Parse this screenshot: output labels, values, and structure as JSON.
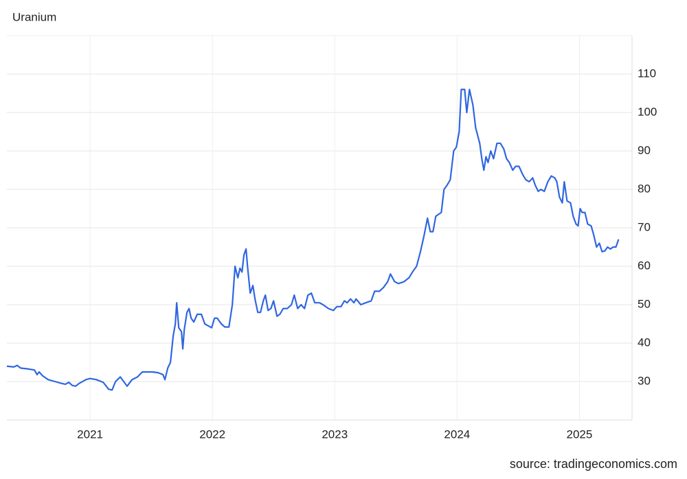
{
  "chart_data": {
    "type": "line",
    "title": "Uranium",
    "source": "source: tradingeconomics.com",
    "color": "#2f66e0",
    "grid": true,
    "xlim": [
      2020.32,
      2025.43
    ],
    "xticks": [
      2021,
      2022,
      2023,
      2024,
      2025
    ],
    "ylim": [
      20,
      120
    ],
    "yticks": [
      30,
      40,
      50,
      60,
      70,
      80,
      90,
      100,
      110
    ],
    "x": [
      2020.32,
      2020.376,
      2020.404,
      2020.433,
      2020.489,
      2020.545,
      2020.567,
      2020.584,
      2020.612,
      2020.657,
      2020.713,
      2020.77,
      2020.798,
      2020.826,
      2020.854,
      2020.882,
      2020.91,
      2020.966,
      2021.0,
      2021.051,
      2021.107,
      2021.152,
      2021.18,
      2021.208,
      2021.247,
      2021.275,
      2021.303,
      2021.343,
      2021.388,
      2021.427,
      2021.472,
      2021.511,
      2021.556,
      2021.596,
      2021.612,
      2021.635,
      2021.657,
      2021.68,
      2021.697,
      2021.708,
      2021.725,
      2021.747,
      2021.758,
      2021.77,
      2021.792,
      2021.809,
      2021.826,
      2021.848,
      2021.876,
      2021.91,
      2021.938,
      2021.966,
      2021.994,
      2022.017,
      2022.039,
      2022.073,
      2022.101,
      2022.135,
      2022.163,
      2022.185,
      2022.208,
      2022.225,
      2022.242,
      2022.258,
      2022.275,
      2022.287,
      2022.309,
      2022.331,
      2022.348,
      2022.371,
      2022.393,
      2022.416,
      2022.433,
      2022.455,
      2022.478,
      2022.5,
      2022.528,
      2022.551,
      2022.579,
      2022.612,
      2022.646,
      2022.669,
      2022.697,
      2022.725,
      2022.753,
      2022.781,
      2022.809,
      2022.837,
      2022.876,
      2022.904,
      2022.949,
      2022.989,
      2023.017,
      2023.051,
      2023.079,
      2023.101,
      2023.129,
      2023.157,
      2023.174,
      2023.213,
      2023.253,
      2023.298,
      2023.326,
      2023.365,
      2023.399,
      2023.433,
      2023.455,
      2023.489,
      2023.522,
      2023.567,
      2023.607,
      2023.635,
      2023.669,
      2023.702,
      2023.73,
      2023.758,
      2023.781,
      2023.803,
      2023.826,
      2023.848,
      2023.871,
      2023.893,
      2023.916,
      2023.944,
      2023.972,
      2023.994,
      2024.017,
      2024.034,
      2024.062,
      2024.079,
      2024.101,
      2024.129,
      2024.152,
      2024.185,
      2024.202,
      2024.219,
      2024.236,
      2024.253,
      2024.275,
      2024.298,
      2024.326,
      2024.354,
      2024.382,
      2024.404,
      2024.427,
      2024.455,
      2024.478,
      2024.506,
      2024.534,
      2024.562,
      2024.59,
      2024.618,
      2024.64,
      2024.663,
      2024.685,
      2024.713,
      2024.742,
      2024.77,
      2024.798,
      2024.815,
      2024.837,
      2024.86,
      2024.876,
      2024.899,
      2024.927,
      2024.949,
      2024.972,
      2024.989,
      2025.006,
      2025.022,
      2025.045,
      2025.067,
      2025.096,
      2025.118,
      2025.14,
      2025.163,
      2025.185,
      2025.208,
      2025.23,
      2025.253,
      2025.275,
      2025.298,
      2025.32
    ],
    "values": [
      34.0,
      33.8,
      34.2,
      33.5,
      33.3,
      33.0,
      31.8,
      32.5,
      31.5,
      30.5,
      30.0,
      29.5,
      29.3,
      29.8,
      29.0,
      28.8,
      29.5,
      30.5,
      30.8,
      30.5,
      29.8,
      28.0,
      27.8,
      30.0,
      31.2,
      30.0,
      28.8,
      30.5,
      31.2,
      32.5,
      32.5,
      32.5,
      32.3,
      31.8,
      30.5,
      33.5,
      35.0,
      42.0,
      45.0,
      50.5,
      44.0,
      43.0,
      38.5,
      43.5,
      48.0,
      49.0,
      46.5,
      45.5,
      47.5,
      47.5,
      45.0,
      44.5,
      44.0,
      46.5,
      46.5,
      45.0,
      44.2,
      44.2,
      50.0,
      60.0,
      57.0,
      59.5,
      58.5,
      63.0,
      64.5,
      60.0,
      53.0,
      55.0,
      51.5,
      48.0,
      48.0,
      51.0,
      52.5,
      48.5,
      49.0,
      51.0,
      47.0,
      47.5,
      49.0,
      49.0,
      50.0,
      52.5,
      49.0,
      50.0,
      49.0,
      52.5,
      53.0,
      50.5,
      50.5,
      50.0,
      49.0,
      48.5,
      49.5,
      49.5,
      51.0,
      50.5,
      51.5,
      50.5,
      51.5,
      50.0,
      50.5,
      51.0,
      53.5,
      53.5,
      54.5,
      56.0,
      58.0,
      56.0,
      55.5,
      56.0,
      57.0,
      58.5,
      60.0,
      64.0,
      68.0,
      72.5,
      69.0,
      69.0,
      73.0,
      73.5,
      74.0,
      80.0,
      81.0,
      82.5,
      90.0,
      91.0,
      95.0,
      106.0,
      106.0,
      100.0,
      106.0,
      102.0,
      96.0,
      92.0,
      88.0,
      85.0,
      88.5,
      87.0,
      90.0,
      88.0,
      92.0,
      92.0,
      90.5,
      88.0,
      87.0,
      85.0,
      86.0,
      86.0,
      84.0,
      82.5,
      82.0,
      83.0,
      81.0,
      79.5,
      80.0,
      79.5,
      82.0,
      83.5,
      83.0,
      82.0,
      78.0,
      76.5,
      82.0,
      77.0,
      76.5,
      73.0,
      71.0,
      70.5,
      75.0,
      74.0,
      74.0,
      71.0,
      70.5,
      68.0,
      65.0,
      66.0,
      63.8,
      64.0,
      65.0,
      64.5,
      65.0,
      65.0,
      67.0
    ]
  }
}
